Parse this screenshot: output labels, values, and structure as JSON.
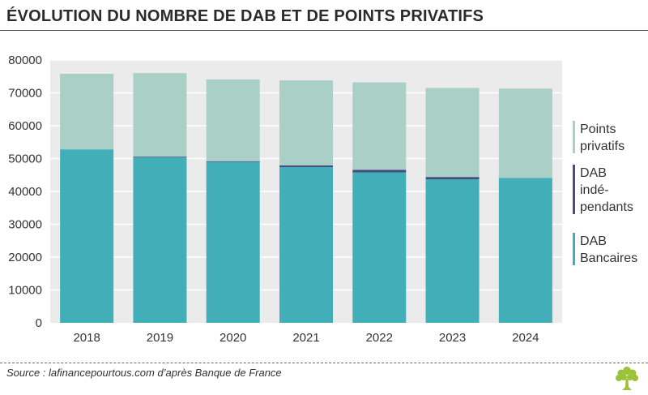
{
  "header": {
    "title": "ÉVOLUTION DU NOMBRE DE DAB ET DE POINTS PRIVATIFS"
  },
  "footer": {
    "source": "Source : lafinancepourtous.com d’après Banque de France",
    "logo_icon": "tree-logo-icon"
  },
  "colors": {
    "dab_bancaires": "#41aeb8",
    "dab_independants": "#4b4b83",
    "points_privatifs": "#a9cfc6",
    "plot_background": "#ebebeb",
    "grid": "#ffffff",
    "logo": "#9cc23b"
  },
  "chart_data": {
    "type": "bar",
    "stacked": true,
    "title": "ÉVOLUTION DU NOMBRE DE DAB ET DE POINTS PRIVATIFS",
    "xlabel": "",
    "ylabel": "",
    "categories": [
      "2018",
      "2019",
      "2020",
      "2021",
      "2022",
      "2023",
      "2024"
    ],
    "ylim": [
      0,
      80000
    ],
    "yticks": [
      0,
      10000,
      20000,
      30000,
      40000,
      50000,
      60000,
      70000,
      80000
    ],
    "ytick_labels": [
      "0",
      "10000",
      "20000",
      "30000",
      "40000",
      "50000",
      "60000",
      "70000",
      "80000"
    ],
    "grid": true,
    "legend_position": "right",
    "series": [
      {
        "name": "DAB Bancaires",
        "legend_lines": [
          "DAB",
          "Bancaires"
        ],
        "color": "#41aeb8",
        "values": [
          52800,
          50400,
          49000,
          47400,
          45800,
          43700,
          44100
        ]
      },
      {
        "name": "DAB indépendants",
        "legend_lines": [
          "DAB",
          "indé-",
          "pendants"
        ],
        "color": "#4b4b83",
        "values": [
          0,
          200,
          200,
          500,
          800,
          700,
          0
        ]
      },
      {
        "name": "Points privatifs",
        "legend_lines": [
          "Points",
          "privatifs"
        ],
        "color": "#a9cfc6",
        "values": [
          23000,
          25400,
          24900,
          25900,
          26600,
          27100,
          27200
        ]
      }
    ],
    "legend_order": [
      "Points privatifs",
      "DAB indépendants",
      "DAB Bancaires"
    ]
  }
}
